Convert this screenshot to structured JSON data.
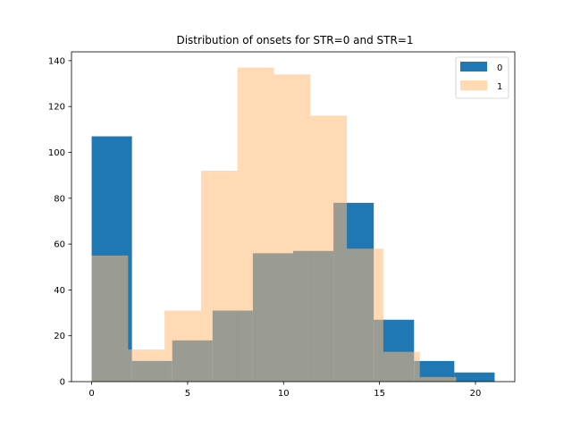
{
  "chart_data": {
    "type": "bar",
    "title": "Distribution of onsets for STR=0 and STR=1",
    "xlabel": "",
    "ylabel": "",
    "xlim": [
      -1.05,
      22.05
    ],
    "ylim": [
      0,
      143.85
    ],
    "xticks": [
      0,
      5,
      10,
      15,
      20
    ],
    "yticks": [
      0,
      20,
      40,
      60,
      80,
      100,
      120,
      140
    ],
    "grid": false,
    "legend_position": "top-right",
    "series": [
      {
        "name": "0",
        "color": "#1f77b4",
        "opacity": 1,
        "bins": [
          {
            "x0": 0,
            "x1": 2.1,
            "value": 107
          },
          {
            "x0": 2.1,
            "x1": 4.2,
            "value": 9
          },
          {
            "x0": 4.2,
            "x1": 6.3,
            "value": 18
          },
          {
            "x0": 6.3,
            "x1": 8.4,
            "value": 31
          },
          {
            "x0": 8.4,
            "x1": 10.5,
            "value": 56
          },
          {
            "x0": 10.5,
            "x1": 12.6,
            "value": 57
          },
          {
            "x0": 12.6,
            "x1": 14.7,
            "value": 78
          },
          {
            "x0": 14.7,
            "x1": 16.8,
            "value": 27
          },
          {
            "x0": 16.8,
            "x1": 18.9,
            "value": 9
          },
          {
            "x0": 18.9,
            "x1": 21.0,
            "value": 4
          }
        ]
      },
      {
        "name": "1",
        "color": "#ffbb78",
        "opacity": 0.55,
        "bins": [
          {
            "x0": 0,
            "x1": 1.9,
            "value": 55
          },
          {
            "x0": 1.9,
            "x1": 3.8,
            "value": 14
          },
          {
            "x0": 3.8,
            "x1": 5.7,
            "value": 31
          },
          {
            "x0": 5.7,
            "x1": 7.6,
            "value": 92
          },
          {
            "x0": 7.6,
            "x1": 9.5,
            "value": 137
          },
          {
            "x0": 9.5,
            "x1": 11.4,
            "value": 134
          },
          {
            "x0": 11.4,
            "x1": 13.3,
            "value": 116
          },
          {
            "x0": 13.3,
            "x1": 15.2,
            "value": 58
          },
          {
            "x0": 15.2,
            "x1": 17.1,
            "value": 13
          },
          {
            "x0": 17.1,
            "x1": 19.0,
            "value": 2
          }
        ]
      }
    ]
  }
}
